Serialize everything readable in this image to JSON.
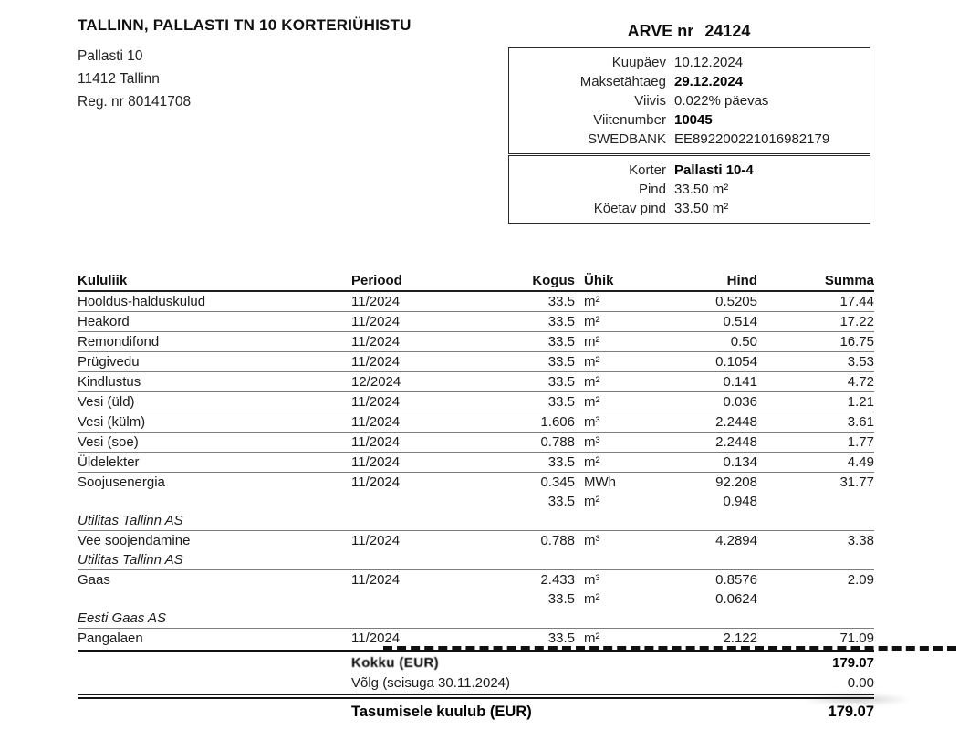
{
  "company": {
    "name": "TALLINN, PALLASTI TN 10 KORTERIÜHISTU",
    "address_line1": "Pallasti 10",
    "address_line2": "11412 Tallinn",
    "reg_line": "Reg. nr 80141708"
  },
  "invoice": {
    "title_label": "ARVE nr",
    "number": "24124",
    "details": [
      {
        "label": "Kuupäev",
        "value": "10.12.2024",
        "bold": false
      },
      {
        "label": "Maksetähtaeg",
        "value": "29.12.2024",
        "bold": true
      },
      {
        "label": "Viivis",
        "value": "0.022% päevas",
        "bold": false
      },
      {
        "label": "Viitenumber",
        "value": "10045",
        "bold": true
      },
      {
        "label": "SWEDBANK",
        "value": "EE892200221016982179",
        "bold": false
      }
    ],
    "apartment": [
      {
        "label": "Korter",
        "value": "Pallasti 10-4",
        "bold": true
      },
      {
        "label": "Pind",
        "value": "33.50 m²",
        "bold": false
      },
      {
        "label": "Köetav pind",
        "value": "33.50 m²",
        "bold": false
      }
    ]
  },
  "table": {
    "headers": [
      "Kululiik",
      "Periood",
      "Kogus",
      "Ühik",
      "Hind",
      "Summa"
    ],
    "rows": [
      {
        "style": "item",
        "rule": true,
        "cells": [
          "Hooldus-halduskulud",
          "11/2024",
          "33.5",
          "m²",
          "0.5205",
          "17.44"
        ]
      },
      {
        "style": "item",
        "rule": true,
        "cells": [
          "Heakord",
          "11/2024",
          "33.5",
          "m²",
          "0.514",
          "17.22"
        ]
      },
      {
        "style": "item",
        "rule": true,
        "cells": [
          "Remondifond",
          "11/2024",
          "33.5",
          "m²",
          "0.50",
          "16.75"
        ]
      },
      {
        "style": "item",
        "rule": true,
        "cells": [
          "Prügivedu",
          "11/2024",
          "33.5",
          "m²",
          "0.1054",
          "3.53"
        ]
      },
      {
        "style": "item",
        "rule": true,
        "cells": [
          "Kindlustus",
          "12/2024",
          "33.5",
          "m²",
          "0.141",
          "4.72"
        ]
      },
      {
        "style": "item",
        "rule": true,
        "cells": [
          "Vesi (üld)",
          "11/2024",
          "33.5",
          "m²",
          "0.036",
          "1.21"
        ]
      },
      {
        "style": "item",
        "rule": true,
        "cells": [
          "Vesi (külm)",
          "11/2024",
          "1.606",
          "m³",
          "2.2448",
          "3.61"
        ]
      },
      {
        "style": "item",
        "rule": true,
        "cells": [
          "Vesi (soe)",
          "11/2024",
          "0.788",
          "m³",
          "2.2448",
          "1.77"
        ]
      },
      {
        "style": "item",
        "rule": true,
        "cells": [
          "Üldelekter",
          "11/2024",
          "33.5",
          "m²",
          "0.134",
          "4.49"
        ]
      },
      {
        "style": "item",
        "rule": false,
        "cells": [
          "Soojusenergia",
          "11/2024",
          "0.345",
          "MWh",
          "92.208",
          "31.77"
        ]
      },
      {
        "style": "sub",
        "rule": false,
        "cells": [
          "",
          "",
          "33.5",
          "m²",
          "0.948",
          ""
        ]
      },
      {
        "style": "supplier",
        "rule": true,
        "cells": [
          "Utilitas Tallinn AS",
          "",
          "",
          "",
          "",
          ""
        ]
      },
      {
        "style": "item",
        "rule": false,
        "cells": [
          "Vee soojendamine",
          "11/2024",
          "0.788",
          "m³",
          "4.2894",
          "3.38"
        ]
      },
      {
        "style": "supplier",
        "rule": true,
        "cells": [
          "Utilitas Tallinn AS",
          "",
          "",
          "",
          "",
          ""
        ]
      },
      {
        "style": "item",
        "rule": false,
        "cells": [
          "Gaas",
          "11/2024",
          "2.433",
          "m³",
          "0.8576",
          "2.09"
        ]
      },
      {
        "style": "sub",
        "rule": false,
        "cells": [
          "",
          "",
          "33.5",
          "m²",
          "0.0624",
          ""
        ]
      },
      {
        "style": "supplier",
        "rule": true,
        "cells": [
          "Eesti Gaas AS",
          "",
          "",
          "",
          "",
          ""
        ]
      },
      {
        "style": "item",
        "rule": false,
        "cells": [
          "Pangalaen",
          "11/2024",
          "33.5",
          "m²",
          "2.122",
          "71.09"
        ]
      }
    ]
  },
  "totals": {
    "kokku_label": "Kokku (EUR)",
    "kokku_value": "179.07",
    "volg_label": "Võlg (seisuga 30.11.2024)",
    "volg_value": "0.00",
    "due_label": "Tasumisele kuulub (EUR)",
    "due_value": "179.07"
  }
}
